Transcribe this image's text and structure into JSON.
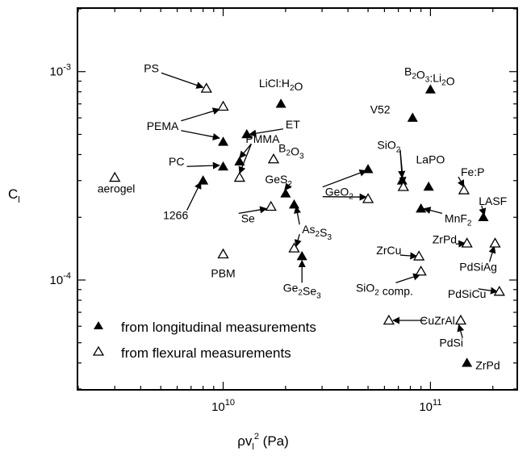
{
  "chart_data": {
    "type": "scatter",
    "title": "",
    "xlabel": "ρv_l² (Pa)",
    "ylabel": "C_l",
    "xscale": "log",
    "yscale": "log",
    "xlim": [
      2000000000.0,
      260000000000.0
    ],
    "ylim": [
      3e-05,
      0.002
    ],
    "xticks": [
      {
        "value": 10000000000.0,
        "base": "10",
        "exp": "10"
      },
      {
        "value": 100000000000.0,
        "base": "10",
        "exp": "11"
      }
    ],
    "yticks": [
      {
        "value": 0.0001,
        "base": "10",
        "exp": "-4"
      },
      {
        "value": 0.001,
        "base": "10",
        "exp": "-3"
      }
    ],
    "grid": false,
    "legend_position": "bottom-left",
    "series": [
      {
        "name": "from longitudinal measurements",
        "marker": "filled-triangle",
        "points": [
          {
            "x": 19000000000.0,
            "y": 0.0007
          },
          {
            "x": 13000000000.0,
            "y": 0.0005
          },
          {
            "x": 10000000000.0,
            "y": 0.00046
          },
          {
            "x": 12000000000.0,
            "y": 0.00037
          },
          {
            "x": 10000000000.0,
            "y": 0.00035
          },
          {
            "x": 8000000000.0,
            "y": 0.0003
          },
          {
            "x": 20000000000.0,
            "y": 0.00026
          },
          {
            "x": 22000000000.0,
            "y": 0.00023
          },
          {
            "x": 24000000000.0,
            "y": 0.00013
          },
          {
            "x": 50000000000.0,
            "y": 0.00034
          },
          {
            "x": 73000000000.0,
            "y": 0.0003
          },
          {
            "x": 82000000000.0,
            "y": 0.0006
          },
          {
            "x": 100000000000.0,
            "y": 0.00082
          },
          {
            "x": 98000000000.0,
            "y": 0.00028
          },
          {
            "x": 90000000000.0,
            "y": 0.00022
          },
          {
            "x": 180000000000.0,
            "y": 0.0002
          },
          {
            "x": 150000000000.0,
            "y": 4e-05
          }
        ]
      },
      {
        "name": "from flexural measurements",
        "marker": "open-triangle",
        "points": [
          {
            "x": 3000000000.0,
            "y": 0.00031
          },
          {
            "x": 8300000000.0,
            "y": 0.00083
          },
          {
            "x": 10000000000.0,
            "y": 0.00068
          },
          {
            "x": 12000000000.0,
            "y": 0.00031
          },
          {
            "x": 10000000000.0,
            "y": 0.000133
          },
          {
            "x": 17500000000.0,
            "y": 0.00038
          },
          {
            "x": 17000000000.0,
            "y": 0.000225
          },
          {
            "x": 22000000000.0,
            "y": 0.000142
          },
          {
            "x": 50000000000.0,
            "y": 0.000245
          },
          {
            "x": 74000000000.0,
            "y": 0.00028
          },
          {
            "x": 88000000000.0,
            "y": 0.00013
          },
          {
            "x": 90000000000.0,
            "y": 0.00011
          },
          {
            "x": 145000000000.0,
            "y": 0.00027
          },
          {
            "x": 150000000000.0,
            "y": 0.00015
          },
          {
            "x": 205000000000.0,
            "y": 0.00015
          },
          {
            "x": 215000000000.0,
            "y": 8.8e-05
          },
          {
            "x": 63000000000.0,
            "y": 6.4e-05
          },
          {
            "x": 140000000000.0,
            "y": 6.4e-05
          }
        ]
      }
    ],
    "annotations": [
      {
        "id": "PS",
        "parts": [
          [
            "PS",
            ""
          ]
        ],
        "anchor": "end",
        "tx": 4900000000.0,
        "ty": 0.00104,
        "arrow_to": [
          8000000000.0,
          0.00084
        ]
      },
      {
        "id": "LiCl:H2O",
        "parts": [
          [
            "LiCl:H",
            ""
          ],
          [
            "2",
            "sub"
          ],
          [
            "O",
            ""
          ]
        ],
        "anchor": "middle",
        "tx": 19000000000.0,
        "ty": 0.00088
      },
      {
        "id": "B2O3:Li2O",
        "parts": [
          [
            "B",
            ""
          ],
          [
            "2",
            "sub"
          ],
          [
            "O",
            ""
          ],
          [
            "3",
            "sub"
          ],
          [
            ":Li",
            ""
          ],
          [
            "2",
            "sub"
          ],
          [
            "O",
            ""
          ]
        ],
        "anchor": "middle",
        "tx": 99000000000.0,
        "ty": 0.001
      },
      {
        "id": "V52",
        "parts": [
          [
            "V52",
            ""
          ]
        ],
        "anchor": "end",
        "tx": 64000000000.0,
        "ty": 0.00066
      },
      {
        "id": "ET",
        "parts": [
          [
            "ET",
            ""
          ]
        ],
        "anchor": "start",
        "tx": 20000000000.0,
        "ty": 0.00056,
        "arrow_to": [
          13400000000.0,
          0.0005
        ]
      },
      {
        "id": "PEMA",
        "parts": [
          [
            "PEMA",
            ""
          ]
        ],
        "anchor": "end",
        "tx": 6100000000.0,
        "ty": 0.00055,
        "arrow_to": [
          9600000000.0,
          0.00066
        ],
        "arrow_to2": [
          9600000000.0,
          0.00048
        ]
      },
      {
        "id": "PMMA",
        "parts": [
          [
            "PMMA",
            ""
          ]
        ],
        "anchor": "middle",
        "tx": 15500000000.0,
        "ty": 0.000475,
        "arrow_to": [
          12000000000.0,
          0.000385
        ],
        "arrow_to2": [
          12000000000.0,
          0.000325
        ]
      },
      {
        "id": "PC",
        "parts": [
          [
            "PC",
            ""
          ]
        ],
        "anchor": "end",
        "tx": 6500000000.0,
        "ty": 0.00037,
        "arrow_to": [
          9600000000.0,
          0.000355
        ]
      },
      {
        "id": "B2O3",
        "parts": [
          [
            "B",
            ""
          ],
          [
            "2",
            "sub"
          ],
          [
            "O",
            ""
          ],
          [
            "3",
            "sub"
          ]
        ],
        "anchor": "start",
        "tx": 18500000000.0,
        "ty": 0.00043
      },
      {
        "id": "SiO2",
        "parts": [
          [
            "SiO",
            ""
          ],
          [
            "2",
            "sub"
          ]
        ],
        "anchor": "middle",
        "tx": 63000000000.0,
        "ty": 0.000445,
        "arrow_to": [
          73000000000.0,
          0.00031
        ],
        "arrow_to2": [
          74000000000.0,
          0.00029
        ]
      },
      {
        "id": "LaPO",
        "parts": [
          [
            "LaPO",
            ""
          ]
        ],
        "anchor": "middle",
        "tx": 100000000000.0,
        "ty": 0.00038
      },
      {
        "id": "Fe:P",
        "parts": [
          [
            "Fe:P",
            ""
          ]
        ],
        "anchor": "start",
        "tx": 140000000000.0,
        "ty": 0.00033,
        "arrow_to": [
          145000000000.0,
          0.00028
        ]
      },
      {
        "id": "GeS2",
        "parts": [
          [
            "GeS",
            ""
          ],
          [
            "2",
            "sub"
          ]
        ],
        "anchor": "middle",
        "tx": 18500000000.0,
        "ty": 0.000305,
        "arrow_to": [
          19800000000.0,
          0.00027
        ]
      },
      {
        "id": "GeO2",
        "parts": [
          [
            "GeO",
            ""
          ],
          [
            "2",
            "sub"
          ]
        ],
        "anchor": "start",
        "tx": 31000000000.0,
        "ty": 0.000265,
        "arrow_to": [
          49000000000.0,
          0.000335
        ],
        "arrow_to2": [
          49000000000.0,
          0.00025
        ]
      },
      {
        "id": "aerogel",
        "parts": [
          [
            "aerogel",
            ""
          ]
        ],
        "anchor": "middle",
        "tx": 3050000000.0,
        "ty": 0.000275
      },
      {
        "id": "1266",
        "parts": [
          [
            "1266",
            ""
          ]
        ],
        "anchor": "middle",
        "tx": 5900000000.0,
        "ty": 0.000205,
        "arrow_to": [
          7800000000.0,
          0.000295
        ]
      },
      {
        "id": "Se",
        "parts": [
          [
            "Se",
            ""
          ]
        ],
        "anchor": "start",
        "tx": 12200000000.0,
        "ty": 0.000198,
        "arrow_to": [
          16200000000.0,
          0.00022
        ]
      },
      {
        "id": "As2S3",
        "parts": [
          [
            "As",
            ""
          ],
          [
            "2",
            "sub"
          ],
          [
            "S",
            ""
          ],
          [
            "3",
            "sub"
          ]
        ],
        "anchor": "start",
        "tx": 24000000000.0,
        "ty": 0.000175,
        "arrow_to": [
          22500000000.0,
          0.000225
        ],
        "arrow_to2": [
          22500000000.0,
          0.000145
        ]
      },
      {
        "id": "LASF",
        "parts": [
          [
            "LASF",
            ""
          ]
        ],
        "anchor": "middle",
        "tx": 200000000000.0,
        "ty": 0.00024,
        "arrow_to": [
          182000000000.0,
          0.000205
        ]
      },
      {
        "id": "MnF2",
        "parts": [
          [
            "MnF",
            ""
          ],
          [
            "2",
            "sub"
          ]
        ],
        "anchor": "start",
        "tx": 117000000000.0,
        "ty": 0.000198,
        "arrow_to": [
          93000000000.0,
          0.00022
        ]
      },
      {
        "id": "ZrPd-flex",
        "parts": [
          [
            "ZrPd",
            ""
          ]
        ],
        "anchor": "middle",
        "tx": 117000000000.0,
        "ty": 0.000157,
        "arrow_to": [
          147000000000.0,
          0.00015
        ]
      },
      {
        "id": "ZrCu",
        "parts": [
          [
            "ZrCu",
            ""
          ]
        ],
        "anchor": "middle",
        "tx": 63000000000.0,
        "ty": 0.000139,
        "arrow_to": [
          86000000000.0,
          0.00013
        ]
      },
      {
        "id": "PBM",
        "parts": [
          [
            "PBM",
            ""
          ]
        ],
        "anchor": "middle",
        "tx": 10000000000.0,
        "ty": 0.000108
      },
      {
        "id": "PdSiAg",
        "parts": [
          [
            "PdSiAg",
            ""
          ]
        ],
        "anchor": "middle",
        "tx": 170000000000.0,
        "ty": 0.000116,
        "arrow_to": [
          203000000000.0,
          0.000145
        ]
      },
      {
        "id": "SiO2comp",
        "parts": [
          [
            "SiO",
            ""
          ],
          [
            "2",
            "sub"
          ],
          [
            " comp.",
            ""
          ]
        ],
        "anchor": "middle",
        "tx": 60000000000.0,
        "ty": 9.2e-05,
        "arrow_to": [
          89000000000.0,
          0.000106
        ]
      },
      {
        "id": "Ge2Se3",
        "parts": [
          [
            "Ge",
            ""
          ],
          [
            "2",
            "sub"
          ],
          [
            "Se",
            ""
          ],
          [
            "3",
            "sub"
          ]
        ],
        "anchor": "middle",
        "tx": 24000000000.0,
        "ty": 9.2e-05,
        "arrow_to": [
          24000000000.0,
          0.000124
        ]
      },
      {
        "id": "PdSiCu",
        "parts": [
          [
            "PdSiCu",
            ""
          ]
        ],
        "anchor": "middle",
        "tx": 150000000000.0,
        "ty": 8.6e-05,
        "arrow_to": [
          210000000000.0,
          8.8e-05
        ]
      },
      {
        "id": "CuZrAl",
        "parts": [
          [
            "CuZrAl",
            ""
          ]
        ],
        "anchor": "middle",
        "tx": 108000000000.0,
        "ty": 6.4e-05,
        "arrow_to": [
          66000000000.0,
          6.4e-05
        ]
      },
      {
        "id": "PdSi",
        "parts": [
          [
            "PdSi",
            ""
          ]
        ],
        "anchor": "middle",
        "tx": 126000000000.0,
        "ty": 5e-05,
        "arrow_to": [
          137000000000.0,
          6.1e-05
        ]
      },
      {
        "id": "ZrPd-long",
        "parts": [
          [
            "ZrPd",
            ""
          ]
        ],
        "anchor": "start",
        "tx": 165000000000.0,
        "ty": 3.9e-05
      }
    ]
  }
}
